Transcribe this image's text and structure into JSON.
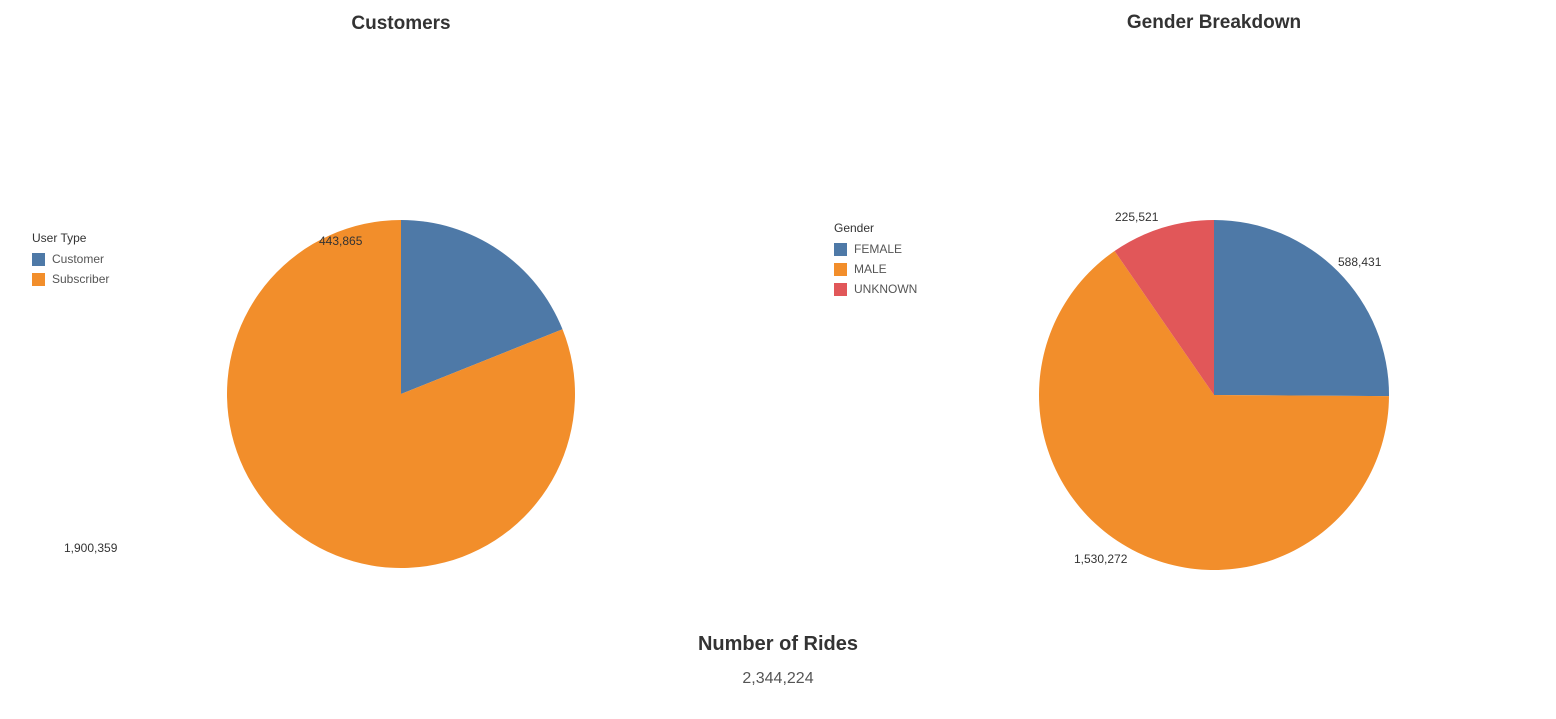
{
  "chart_data": [
    {
      "type": "pie",
      "title": "Customers",
      "legend": {
        "title": "User Type",
        "placement": "left"
      },
      "slices": [
        {
          "label": "Customer",
          "value": 443865,
          "value_label": "443,865",
          "color": "#4e79a7"
        },
        {
          "label": "Subscriber",
          "value": 1900359,
          "value_label": "1,900,359",
          "color": "#f28e2b"
        }
      ]
    },
    {
      "type": "pie",
      "title": "Gender Breakdown",
      "legend": {
        "title": "Gender",
        "placement": "left"
      },
      "slices": [
        {
          "label": "FEMALE",
          "value": 588431,
          "value_label": "588,431",
          "color": "#4e79a7"
        },
        {
          "label": "MALE",
          "value": 1530272,
          "value_label": "1,530,272",
          "color": "#f28e2b"
        },
        {
          "label": "UNKNOWN",
          "value": 225521,
          "value_label": "225,521",
          "color": "#e15759"
        }
      ]
    }
  ],
  "kpi": {
    "title": "Number of Rides",
    "value": "2,344,224"
  }
}
